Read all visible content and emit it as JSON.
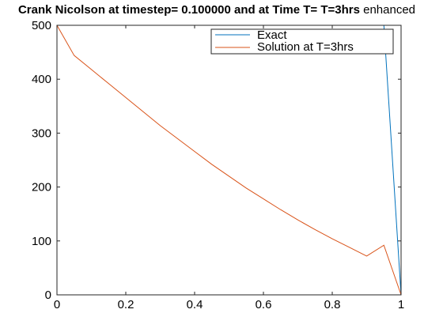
{
  "chart_data": {
    "type": "line",
    "title_bold": "Crank Nicolson at timestep= 0.100000 and at Time T= T=3hrs",
    "title_suffix": " enhanced",
    "xlabel": "",
    "ylabel": "",
    "xlim": [
      0,
      1
    ],
    "ylim": [
      0,
      500
    ],
    "x_ticks": [
      0,
      0.2,
      0.4,
      0.6,
      0.8,
      1
    ],
    "x_tick_labels": [
      "0",
      "0.2",
      "0.4",
      "0.6",
      "0.8",
      "1"
    ],
    "y_ticks": [
      0,
      100,
      200,
      300,
      400,
      500
    ],
    "y_tick_labels": [
      "0",
      "100",
      "200",
      "300",
      "400",
      "500"
    ],
    "grid": false,
    "legend_placement": "top-right",
    "series": [
      {
        "name": "Exact",
        "color": "#0072BD",
        "x": [
          0,
          0.1,
          0.2,
          0.3,
          0.4,
          0.5,
          0.6,
          0.7,
          0.8,
          0.9,
          0.95,
          1
        ],
        "y": [
          500,
          500,
          500,
          500,
          500,
          500,
          500,
          500,
          500,
          500,
          500,
          0
        ]
      },
      {
        "name": "Solution at T=3hrs",
        "color": "#D95319",
        "x": [
          0,
          0.05,
          0.1,
          0.15,
          0.2,
          0.25,
          0.3,
          0.35,
          0.4,
          0.45,
          0.5,
          0.55,
          0.6,
          0.65,
          0.7,
          0.75,
          0.8,
          0.85,
          0.9,
          0.95,
          1
        ],
        "y": [
          500,
          444,
          418,
          392,
          366,
          340,
          314,
          290,
          266,
          242,
          220,
          198,
          178,
          158,
          139,
          121,
          104,
          88,
          72,
          92,
          0
        ]
      }
    ]
  }
}
